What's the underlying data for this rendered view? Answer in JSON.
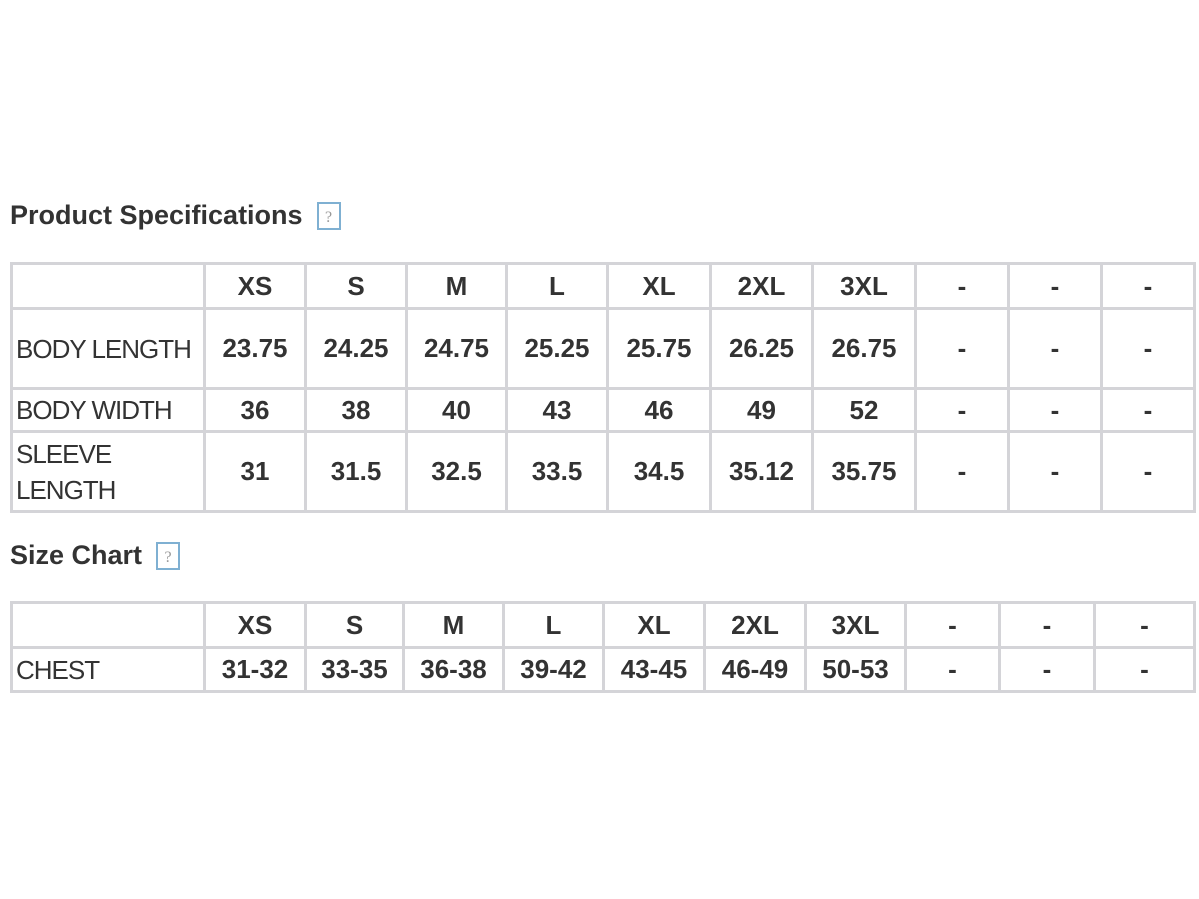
{
  "sections": [
    {
      "title": "Product Specifications",
      "help": "?",
      "table": {
        "header": [
          "",
          "XS",
          "S",
          "M",
          "L",
          "XL",
          "2XL",
          "3XL",
          "-",
          "-",
          "-"
        ],
        "rows": [
          [
            "BODY LENGTH",
            "23.75",
            "24.25",
            "24.75",
            "25.25",
            "25.75",
            "26.25",
            "26.75",
            "-",
            "-",
            "-"
          ],
          [
            "BODY WIDTH",
            "36",
            "38",
            "40",
            "43",
            "46",
            "49",
            "52",
            "-",
            "-",
            "-"
          ],
          [
            "SLEEVE LENGTH",
            "31",
            "31.5",
            "32.5",
            "33.5",
            "34.5",
            "35.12",
            "35.75",
            "-",
            "-",
            "-"
          ]
        ]
      }
    },
    {
      "title": "Size Chart",
      "help": "?",
      "table": {
        "header": [
          "",
          "XS",
          "S",
          "M",
          "L",
          "XL",
          "2XL",
          "3XL",
          "-",
          "-",
          "-"
        ],
        "rows": [
          [
            "CHEST",
            "31-32",
            "33-35",
            "36-38",
            "39-42",
            "43-45",
            "46-49",
            "50-53",
            "-",
            "-",
            "-"
          ]
        ]
      }
    }
  ]
}
